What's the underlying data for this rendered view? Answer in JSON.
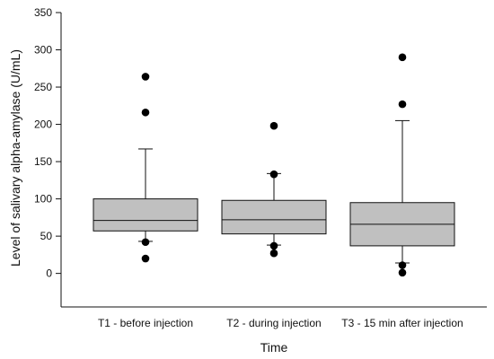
{
  "chart_data": {
    "type": "box",
    "title": "",
    "xlabel": "Time",
    "ylabel": "Level of salivary alpha-amylase (U/mL)",
    "ylim": [
      -45,
      350
    ],
    "yticks": [
      0,
      50,
      100,
      150,
      200,
      250,
      300,
      350
    ],
    "grid": false,
    "categories": [
      "T1 - before injection",
      "T2 - during injection",
      "T3 - 15 min after injection"
    ],
    "boxes": [
      {
        "category": "T1 - before injection",
        "whisker_low": 43,
        "q1": 57,
        "median": 71,
        "q3": 100,
        "whisker_high": 167,
        "outliers": [
          20,
          42,
          216,
          264
        ]
      },
      {
        "category": "T2 - during injection",
        "whisker_low": 38,
        "q1": 53,
        "median": 72,
        "q3": 98,
        "whisker_high": 134,
        "outliers": [
          27,
          37,
          133,
          198
        ]
      },
      {
        "category": "T3 - 15 min after injection",
        "whisker_low": 14,
        "q1": 37,
        "median": 66,
        "q3": 95,
        "whisker_high": 205,
        "outliers": [
          1,
          11,
          227,
          290
        ]
      }
    ],
    "colors": {
      "box_fill": "#c0c0c0",
      "stroke": "#111111",
      "outlier": "#000000",
      "background": "#ffffff"
    }
  }
}
